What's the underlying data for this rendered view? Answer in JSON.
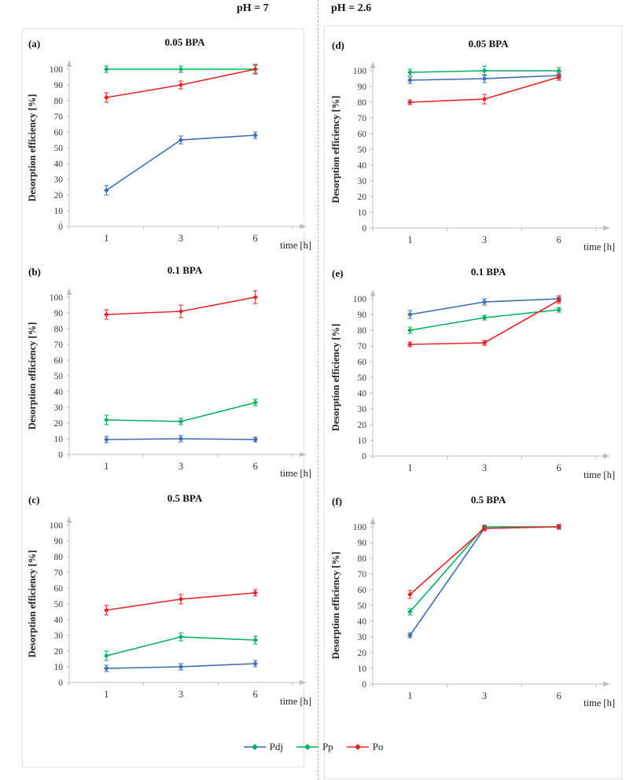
{
  "figure": {
    "column_headers": [
      {
        "label": "pH = 7"
      },
      {
        "label": "pH = 2.6"
      }
    ],
    "axis_color": "#bfbfbf",
    "tick_label_color": "#3a3a3a",
    "series_colors": {
      "Pdj": "#3b6cb4",
      "Pp": "#00b05c",
      "Po": "#e62528"
    },
    "legend": {
      "items": [
        {
          "label": "Pdj",
          "line_color": "#3b6cb4",
          "marker_color": "#00b05c"
        },
        {
          "label": "Pp",
          "line_color": "#00b05c",
          "marker_color": "#00b05c"
        },
        {
          "label": "Po",
          "line_color": "#e62528",
          "marker_color": "#e62528"
        }
      ]
    }
  },
  "chart_data": [
    {
      "panel": "(a)",
      "title": "0.05 BPA",
      "group": "pH = 7",
      "type": "line",
      "categories": [
        "1",
        "3",
        "6"
      ],
      "xlabel": "time [h]",
      "ylabel": "Desorption efficiency [%]",
      "ylim": [
        0,
        100
      ],
      "ytick_step": 10,
      "grid": false,
      "series": [
        {
          "name": "Pdj",
          "color": "#3b6cb4",
          "values": [
            23,
            55,
            58
          ],
          "errors": [
            3,
            2.5,
            2
          ]
        },
        {
          "name": "Pp",
          "color": "#00b05c",
          "values": [
            100,
            100,
            100
          ],
          "errors": [
            2,
            2,
            2.5
          ]
        },
        {
          "name": "Po",
          "color": "#e62528",
          "values": [
            82,
            90,
            100
          ],
          "errors": [
            3,
            2.5,
            3
          ]
        }
      ]
    },
    {
      "panel": "(b)",
      "title": "0.1 BPA",
      "group": "pH = 7",
      "type": "line",
      "categories": [
        "1",
        "3",
        "6"
      ],
      "xlabel": "time [h]",
      "ylabel": "Desorption efficiency [%]",
      "ylim": [
        0,
        100
      ],
      "ytick_step": 10,
      "grid": false,
      "series": [
        {
          "name": "Pdj",
          "color": "#3b6cb4",
          "values": [
            9.5,
            10,
            9.5
          ],
          "errors": [
            2,
            2,
            1.5
          ]
        },
        {
          "name": "Pp",
          "color": "#00b05c",
          "values": [
            22,
            21,
            33
          ],
          "errors": [
            3,
            2,
            2
          ]
        },
        {
          "name": "Po",
          "color": "#e62528",
          "values": [
            89,
            91,
            100
          ],
          "errors": [
            3,
            4,
            4
          ]
        }
      ]
    },
    {
      "panel": "(c)",
      "title": "0.5 BPA",
      "group": "pH = 7",
      "type": "line",
      "categories": [
        "1",
        "3",
        "6"
      ],
      "xlabel": "time [h]",
      "ylabel": "Desorption efficiency [%]",
      "ylim": [
        0,
        100
      ],
      "ytick_step": 10,
      "grid": false,
      "series": [
        {
          "name": "Pdj",
          "color": "#3b6cb4",
          "values": [
            9,
            10,
            12
          ],
          "errors": [
            2,
            2,
            2
          ]
        },
        {
          "name": "Pp",
          "color": "#00b05c",
          "values": [
            17,
            29,
            27
          ],
          "errors": [
            3,
            2.5,
            2.5
          ]
        },
        {
          "name": "Po",
          "color": "#e62528",
          "values": [
            46,
            53,
            57
          ],
          "errors": [
            3,
            3,
            2
          ]
        }
      ]
    },
    {
      "panel": "(d)",
      "title": "0.05 BPA",
      "group": "pH = 2.6",
      "type": "line",
      "categories": [
        "1",
        "3",
        "6"
      ],
      "xlabel": "time [h]",
      "ylabel": "Desorption efficiency [%]",
      "ylim": [
        0,
        100
      ],
      "ytick_step": 10,
      "grid": false,
      "series": [
        {
          "name": "Pdj",
          "color": "#3b6cb4",
          "values": [
            94,
            95,
            97
          ],
          "errors": [
            2,
            2.5,
            2
          ]
        },
        {
          "name": "Pp",
          "color": "#00b05c",
          "values": [
            99,
            100,
            100
          ],
          "errors": [
            2,
            3,
            2
          ]
        },
        {
          "name": "Po",
          "color": "#e62528",
          "values": [
            80,
            82,
            96
          ],
          "errors": [
            1.5,
            3,
            2
          ]
        }
      ]
    },
    {
      "panel": "(e)",
      "title": "0.1 BPA",
      "group": "pH = 2.6",
      "type": "line",
      "categories": [
        "1",
        "3",
        "6"
      ],
      "xlabel": "time [h]",
      "ylabel": "Desorption efficiency [%]",
      "ylim": [
        0,
        100
      ],
      "ytick_step": 10,
      "grid": false,
      "series": [
        {
          "name": "Pdj",
          "color": "#3b6cb4",
          "values": [
            90,
            98,
            100
          ],
          "errors": [
            2.5,
            2,
            2
          ]
        },
        {
          "name": "Pp",
          "color": "#00b05c",
          "values": [
            80,
            88,
            93
          ],
          "errors": [
            2,
            1.5,
            1.5
          ]
        },
        {
          "name": "Po",
          "color": "#e62528",
          "values": [
            71,
            72,
            99
          ],
          "errors": [
            1.5,
            1.5,
            2
          ]
        }
      ]
    },
    {
      "panel": "(f)",
      "title": "0.5 BPA",
      "group": "pH = 2.6",
      "type": "line",
      "categories": [
        "1",
        "3",
        "6"
      ],
      "xlabel": "time [h]",
      "ylabel": "Desorption efficiency [%]",
      "ylim": [
        0,
        100
      ],
      "ytick_step": 10,
      "grid": false,
      "series": [
        {
          "name": "Pdj",
          "color": "#3b6cb4",
          "values": [
            31,
            99,
            100
          ],
          "errors": [
            1.5,
            1,
            1
          ]
        },
        {
          "name": "Pp",
          "color": "#00b05c",
          "values": [
            46,
            100,
            100
          ],
          "errors": [
            2,
            1,
            1
          ]
        },
        {
          "name": "Po",
          "color": "#e62528",
          "values": [
            57,
            99,
            100
          ],
          "errors": [
            2.5,
            1.5,
            1.5
          ]
        }
      ]
    }
  ]
}
